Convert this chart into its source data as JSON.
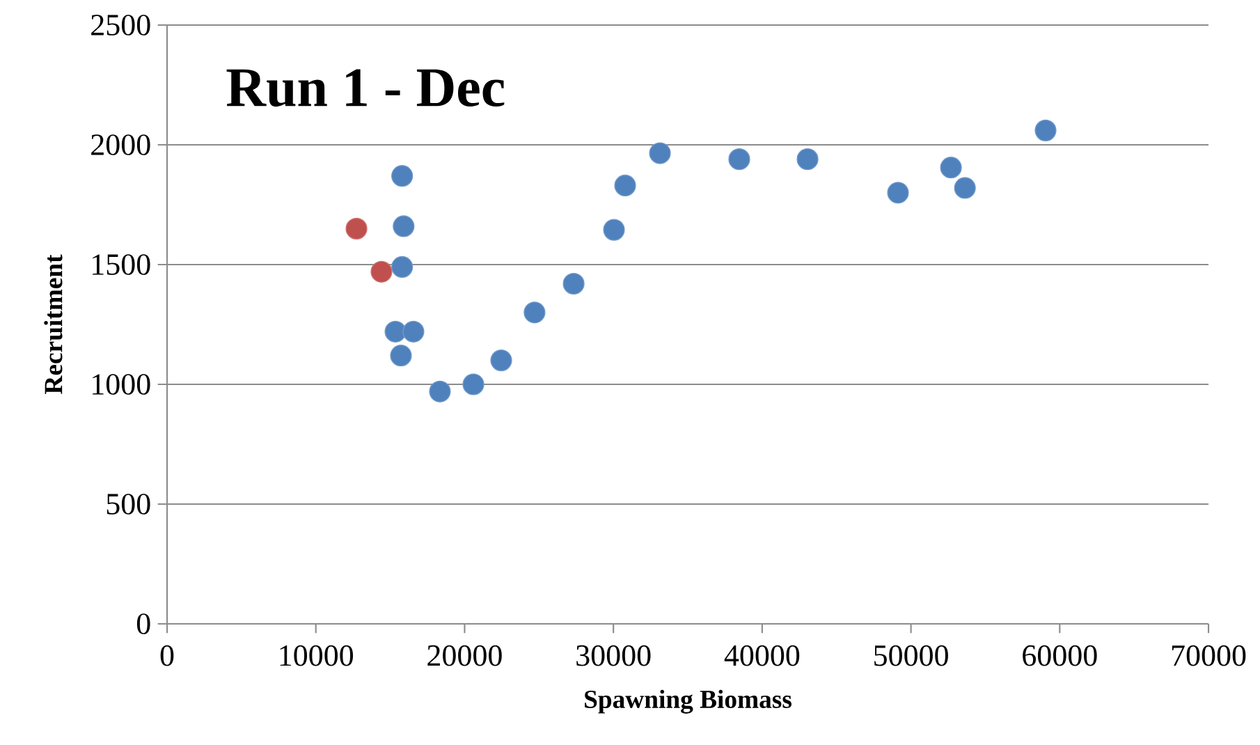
{
  "chart_data": {
    "type": "scatter",
    "title": "Run 1 - Dec",
    "xlabel": "Spawning Biomass",
    "ylabel": "Recruitment",
    "xlim": [
      0,
      70000
    ],
    "ylim": [
      0,
      2500
    ],
    "xticks": [
      0,
      10000,
      20000,
      30000,
      40000,
      50000,
      60000,
      70000
    ],
    "yticks": [
      0,
      500,
      1000,
      1500,
      2000,
      2500
    ],
    "grid": "y",
    "series": [
      {
        "color": "#4f81bd",
        "x": [
          15800,
          15900,
          15800,
          15350,
          16560,
          15720,
          18340,
          20590,
          22460,
          24700,
          27330,
          30040,
          30790,
          33130,
          38460,
          43050,
          49130,
          52690,
          53630,
          59050
        ],
        "values": [
          1870,
          1660,
          1490,
          1220,
          1220,
          1120,
          970,
          1000,
          1100,
          1300,
          1420,
          1645,
          1830,
          1965,
          1940,
          1940,
          1800,
          1905,
          1820,
          2060
        ]
      },
      {
        "color": "#c0504d",
        "x": [
          12730,
          14410
        ],
        "values": [
          1650,
          1470
        ]
      }
    ]
  }
}
